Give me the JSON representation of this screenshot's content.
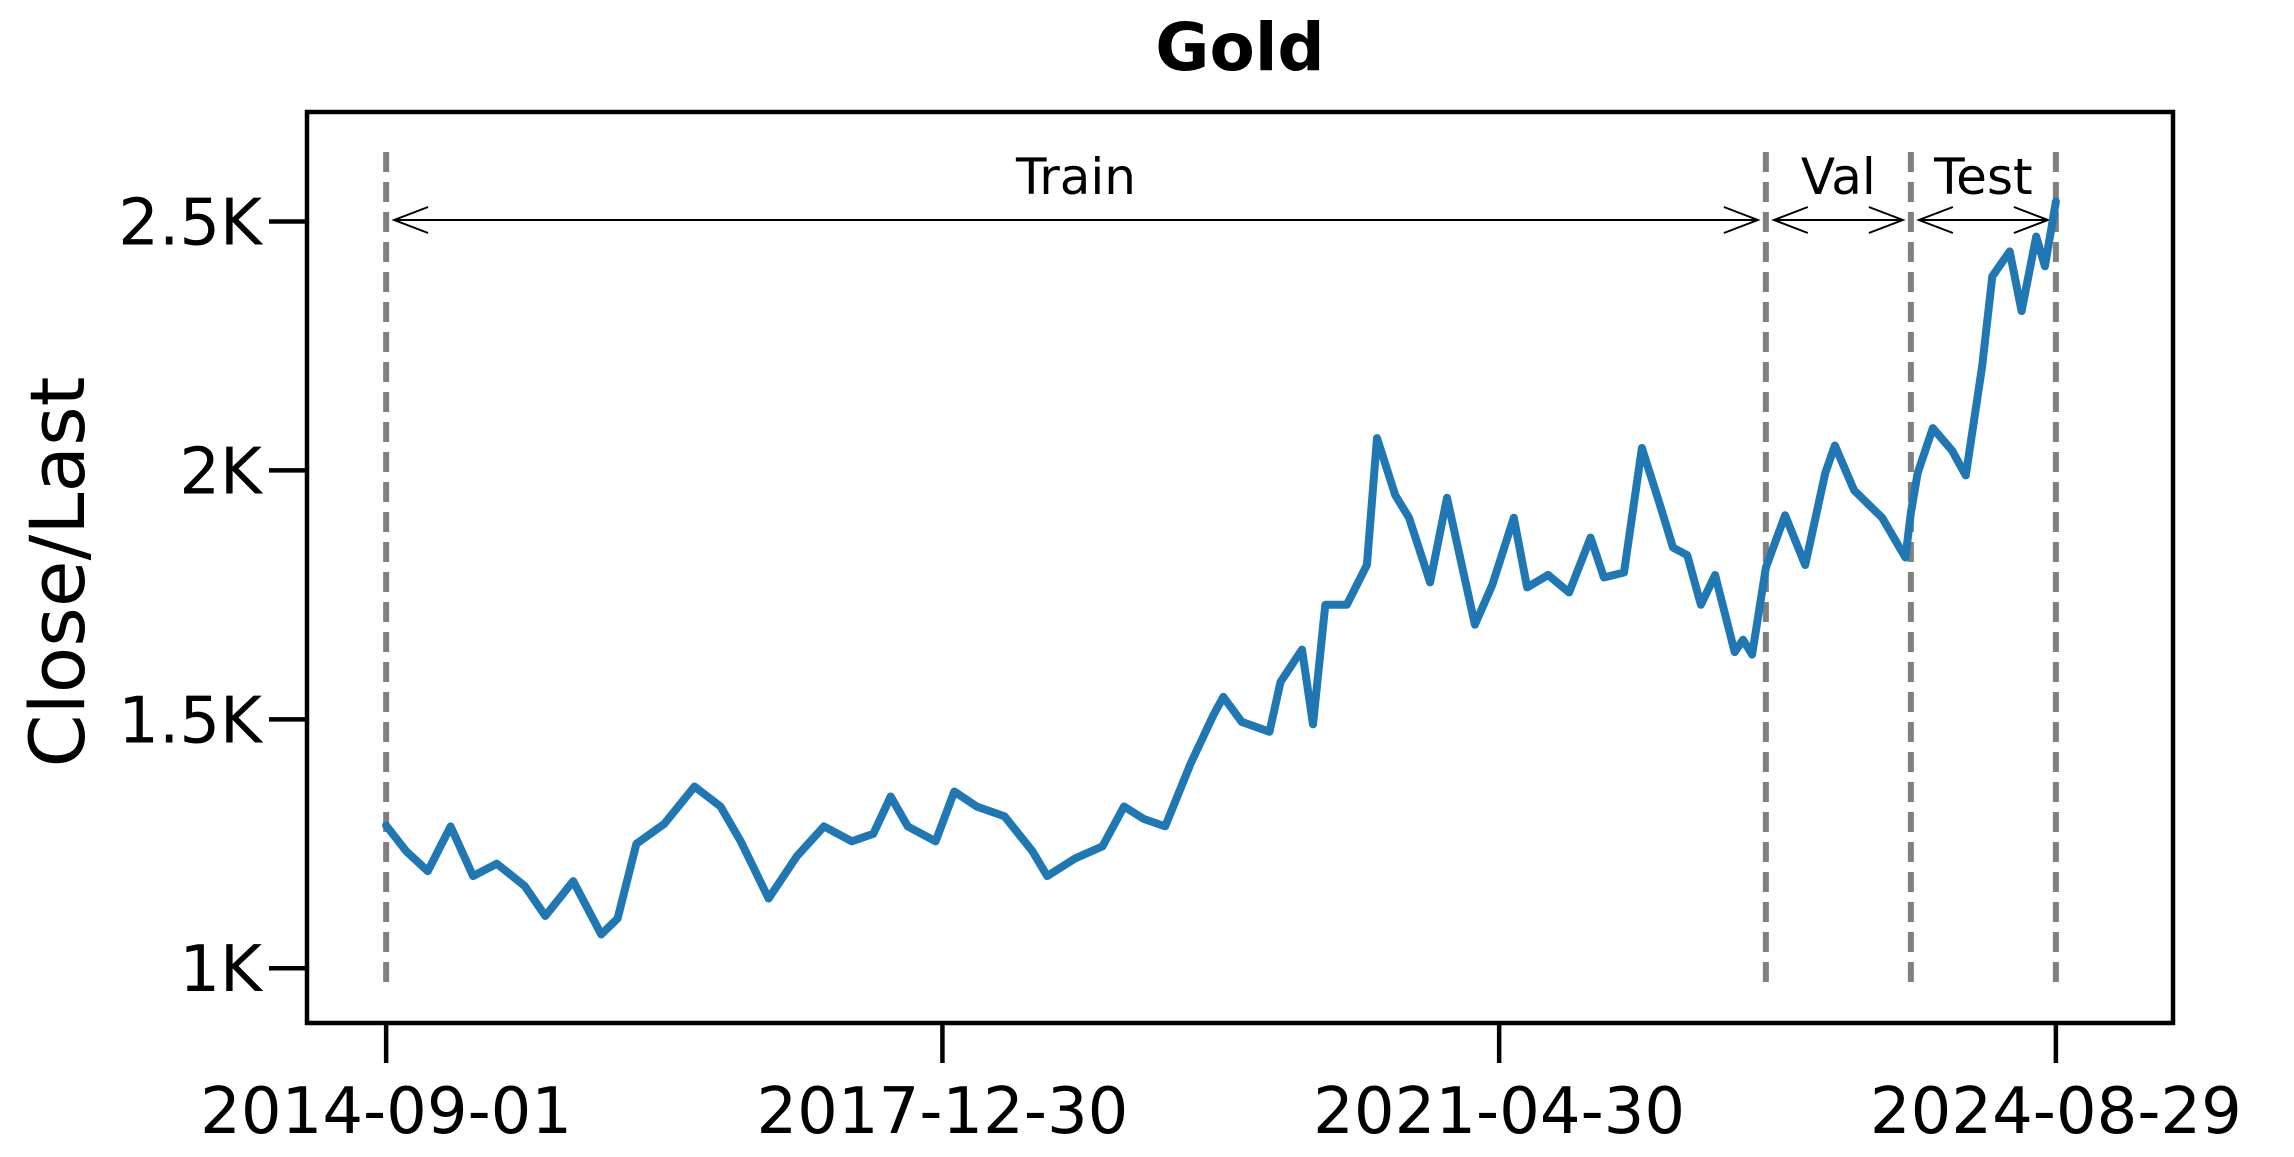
{
  "chart_data": {
    "type": "line",
    "title": "Gold",
    "xlabel": "",
    "ylabel": "Close/Last",
    "x_axis_type": "date",
    "xlim": [
      "2014-03-12",
      "2025-05-12"
    ],
    "ylim": [
      890,
      2720
    ],
    "grid": false,
    "x_ticks": [
      "2014-09-01",
      "2017-12-30",
      "2021-04-30",
      "2024-08-29"
    ],
    "y_ticks": [
      {
        "value": 1000,
        "label": "1K"
      },
      {
        "value": 1500,
        "label": "1.5K"
      },
      {
        "value": 2000,
        "label": "2K"
      },
      {
        "value": 2500,
        "label": "2.5K"
      }
    ],
    "splits": [
      {
        "label": "Train",
        "start": "2014-09-01",
        "end": "2022-12-04"
      },
      {
        "label": "Val",
        "start": "2022-12-04",
        "end": "2023-10-17"
      },
      {
        "label": "Test",
        "start": "2023-10-17",
        "end": "2024-08-29"
      }
    ],
    "split_boundaries": [
      "2014-09-01",
      "2022-12-04",
      "2023-10-17",
      "2024-08-29"
    ],
    "series": [
      {
        "color": "#1f77b4",
        "x": [
          "2014-09-01",
          "2014-10-15",
          "2014-12-01",
          "2015-01-20",
          "2015-03-10",
          "2015-05-01",
          "2015-07-01",
          "2015-08-15",
          "2015-10-15",
          "2015-12-15",
          "2016-01-20",
          "2016-03-01",
          "2016-05-01",
          "2016-07-06",
          "2016-09-01",
          "2016-10-15",
          "2016-12-15",
          "2017-02-15",
          "2017-04-15",
          "2017-06-15",
          "2017-08-01",
          "2017-09-08",
          "2017-10-15",
          "2017-12-15",
          "2018-01-25",
          "2018-03-15",
          "2018-05-15",
          "2018-07-15",
          "2018-08-16",
          "2018-10-15",
          "2018-12-15",
          "2019-01-31",
          "2019-03-15",
          "2019-05-01",
          "2019-06-25",
          "2019-08-15",
          "2019-09-05",
          "2019-10-15",
          "2019-12-15",
          "2020-01-08",
          "2020-02-24",
          "2020-03-19",
          "2020-04-15",
          "2020-06-01",
          "2020-07-15",
          "2020-08-06",
          "2020-09-15",
          "2020-10-15",
          "2020-11-30",
          "2021-01-06",
          "2021-03-08",
          "2021-04-15",
          "2021-06-01",
          "2021-06-30",
          "2021-08-15",
          "2021-09-30",
          "2021-11-16",
          "2021-12-15",
          "2022-01-28",
          "2022-03-08",
          "2022-04-15",
          "2022-05-15",
          "2022-06-15",
          "2022-07-15",
          "2022-08-15",
          "2022-09-27",
          "2022-10-15",
          "2022-11-04",
          "2022-12-04",
          "2023-01-15",
          "2023-02-28",
          "2023-04-13",
          "2023-05-04",
          "2023-06-15",
          "2023-08-15",
          "2023-10-05",
          "2023-10-17",
          "2023-11-01",
          "2023-12-04",
          "2024-01-15",
          "2024-02-14",
          "2024-03-21",
          "2024-04-12",
          "2024-05-20",
          "2024-06-15",
          "2024-07-17",
          "2024-08-05",
          "2024-08-29"
        ],
        "y": [
          1287,
          1235,
          1195,
          1285,
          1185,
          1210,
          1165,
          1105,
          1175,
          1068,
          1100,
          1250,
          1290,
          1365,
          1325,
          1255,
          1140,
          1225,
          1285,
          1255,
          1270,
          1345,
          1285,
          1255,
          1355,
          1325,
          1305,
          1235,
          1185,
          1220,
          1245,
          1325,
          1300,
          1285,
          1410,
          1510,
          1545,
          1495,
          1475,
          1575,
          1640,
          1490,
          1730,
          1730,
          1810,
          2065,
          1950,
          1905,
          1775,
          1945,
          1690,
          1770,
          1905,
          1765,
          1790,
          1755,
          1865,
          1785,
          1795,
          2045,
          1935,
          1845,
          1830,
          1730,
          1790,
          1635,
          1660,
          1630,
          1805,
          1910,
          1810,
          1995,
          2050,
          1960,
          1905,
          1825,
          1915,
          1995,
          2085,
          2040,
          1990,
          2210,
          2390,
          2440,
          2320,
          2470,
          2410,
          2540
        ]
      }
    ]
  }
}
